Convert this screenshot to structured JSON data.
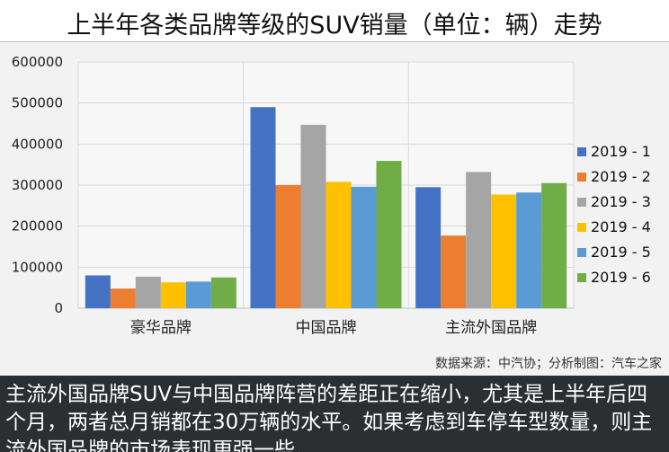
{
  "title": "上半年各类品牌等级的SUV销量（单位：辆）走势",
  "source": "数据来源：中汽协；分析制图：汽车之家",
  "caption": "主流外国品牌SUV与中国品牌阵营的差距正在缩小，尤其是上半年后四个月，两者总月销都在30万辆的水平。如果考虑到车停车型数量，则主流外国品牌的市场表现更强一些。",
  "chart_data": {
    "type": "bar",
    "title": "上半年各类品牌等级的SUV销量（单位：辆）走势",
    "categories": [
      "豪华品牌",
      "中国品牌",
      "主流外国品牌"
    ],
    "ylim": [
      0,
      600000
    ],
    "yticks": [
      0,
      100000,
      200000,
      300000,
      400000,
      500000,
      600000
    ],
    "grid": true,
    "legend_position": "right",
    "series": [
      {
        "name": "2019 - 1",
        "color": "#4472c4",
        "values": [
          80000,
          490000,
          295000
        ]
      },
      {
        "name": "2019 - 2",
        "color": "#ed7d31",
        "values": [
          48000,
          300000,
          177000
        ]
      },
      {
        "name": "2019 - 3",
        "color": "#a5a5a5",
        "values": [
          77000,
          447000,
          332000
        ]
      },
      {
        "name": "2019 - 4",
        "color": "#ffc000",
        "values": [
          63000,
          308000,
          277000
        ]
      },
      {
        "name": "2019 - 5",
        "color": "#5b9bd5",
        "values": [
          65000,
          296000,
          282000
        ]
      },
      {
        "name": "2019 - 6",
        "color": "#70ad47",
        "values": [
          75000,
          359000,
          305000
        ]
      }
    ]
  }
}
